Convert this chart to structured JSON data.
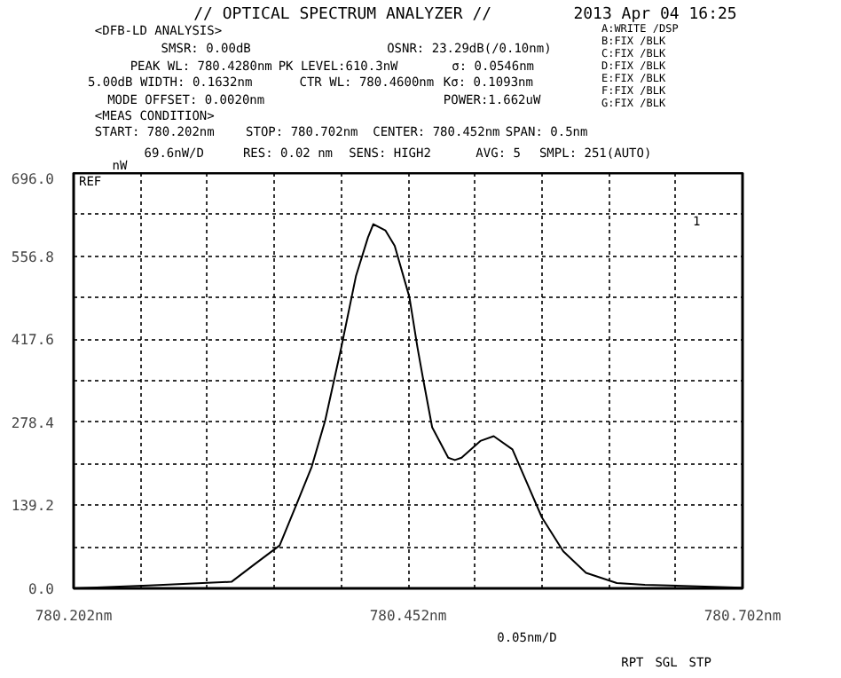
{
  "chart_data": {
    "type": "line",
    "title": "// OPTICAL SPECTRUM ANALYZER //",
    "subtitle": "2013 Apr 04 16:25",
    "ylabel": "nW",
    "x": [
      780.202,
      780.258,
      780.32,
      780.337,
      780.356,
      780.369,
      780.38,
      780.39,
      780.402,
      780.413,
      780.422,
      780.426,
      780.435,
      780.442,
      780.453,
      780.459,
      780.463,
      780.47,
      780.482,
      780.487,
      780.492,
      780.506,
      780.516,
      780.53,
      780.541,
      780.552,
      780.568,
      780.585,
      780.608,
      780.629,
      780.702
    ],
    "series": [
      {
        "color": "#000000",
        "values": [
          0,
          5,
          11,
          40,
          72,
          143,
          204,
          281,
          403,
          523,
          588,
          610.3,
          600,
          574,
          488,
          404,
          354,
          270,
          219,
          215,
          219,
          247,
          255,
          233,
          176,
          119,
          62,
          26,
          9,
          6,
          1
        ]
      }
    ],
    "xlim": [
      780.202,
      780.702
    ],
    "ylim": [
      0,
      696.0
    ],
    "xticks": [
      {
        "value": 780.202,
        "label": "780.202nm"
      },
      {
        "value": 780.252,
        "label": null
      },
      {
        "value": 780.302,
        "label": null
      },
      {
        "value": 780.352,
        "label": null
      },
      {
        "value": 780.402,
        "label": null
      },
      {
        "value": 780.452,
        "label": "780.452nm"
      },
      {
        "value": 780.502,
        "label": null
      },
      {
        "value": 780.552,
        "label": null
      },
      {
        "value": 780.602,
        "label": null
      },
      {
        "value": 780.652,
        "label": null
      },
      {
        "value": 780.702,
        "label": "780.702nm"
      }
    ],
    "yticks": [
      {
        "value": 0,
        "label": "0.0"
      },
      {
        "value": 69.6,
        "label": null
      },
      139.2,
      {
        "value": 208.8,
        "label": null
      },
      278.4,
      {
        "value": 348.0,
        "label": null
      },
      417.6,
      {
        "value": 487.2,
        "label": null
      },
      556.8,
      {
        "value": 626.4,
        "label": null
      },
      {
        "value": 696.0,
        "label": "696.0"
      }
    ],
    "grid": true,
    "line_style": "solid",
    "marker": "none",
    "annotations": [
      "<DFB-LD ANALYSIS>",
      "SMSR: 0.00dB",
      "PEAK WL: 780.4280nm",
      "5.00dB WIDTH: 0.1632nm",
      "MODE OFFSET: 0.0020nm",
      "OSNR: 23.29dB(/0.10nm)",
      "PK LEVEL:610.3nW",
      "CTR WL: 780.4600nm",
      "σ: 0.0546nm",
      "Kσ: 0.1093nm",
      "POWER:1.662uW",
      "A:WRITE /DSP",
      "B:FIX /BLK",
      "C:FIX /BLK",
      "D:FIX /BLK",
      "E:FIX /BLK",
      "F:FIX /BLK",
      "G:FIX /BLK",
      "<MEAS CONDITION>",
      "START: 780.202nm",
      "STOP: 780.702nm",
      "CENTER: 780.452nm",
      "SPAN: 0.5nm",
      "69.6nW/D",
      "RES: 0.02 nm",
      "SENS: HIGH2",
      "AVG: 5",
      "SMPL: 251(AUTO)",
      "REF",
      "0.05nm/D",
      "1",
      "RPT",
      "SGL",
      "STP"
    ]
  }
}
